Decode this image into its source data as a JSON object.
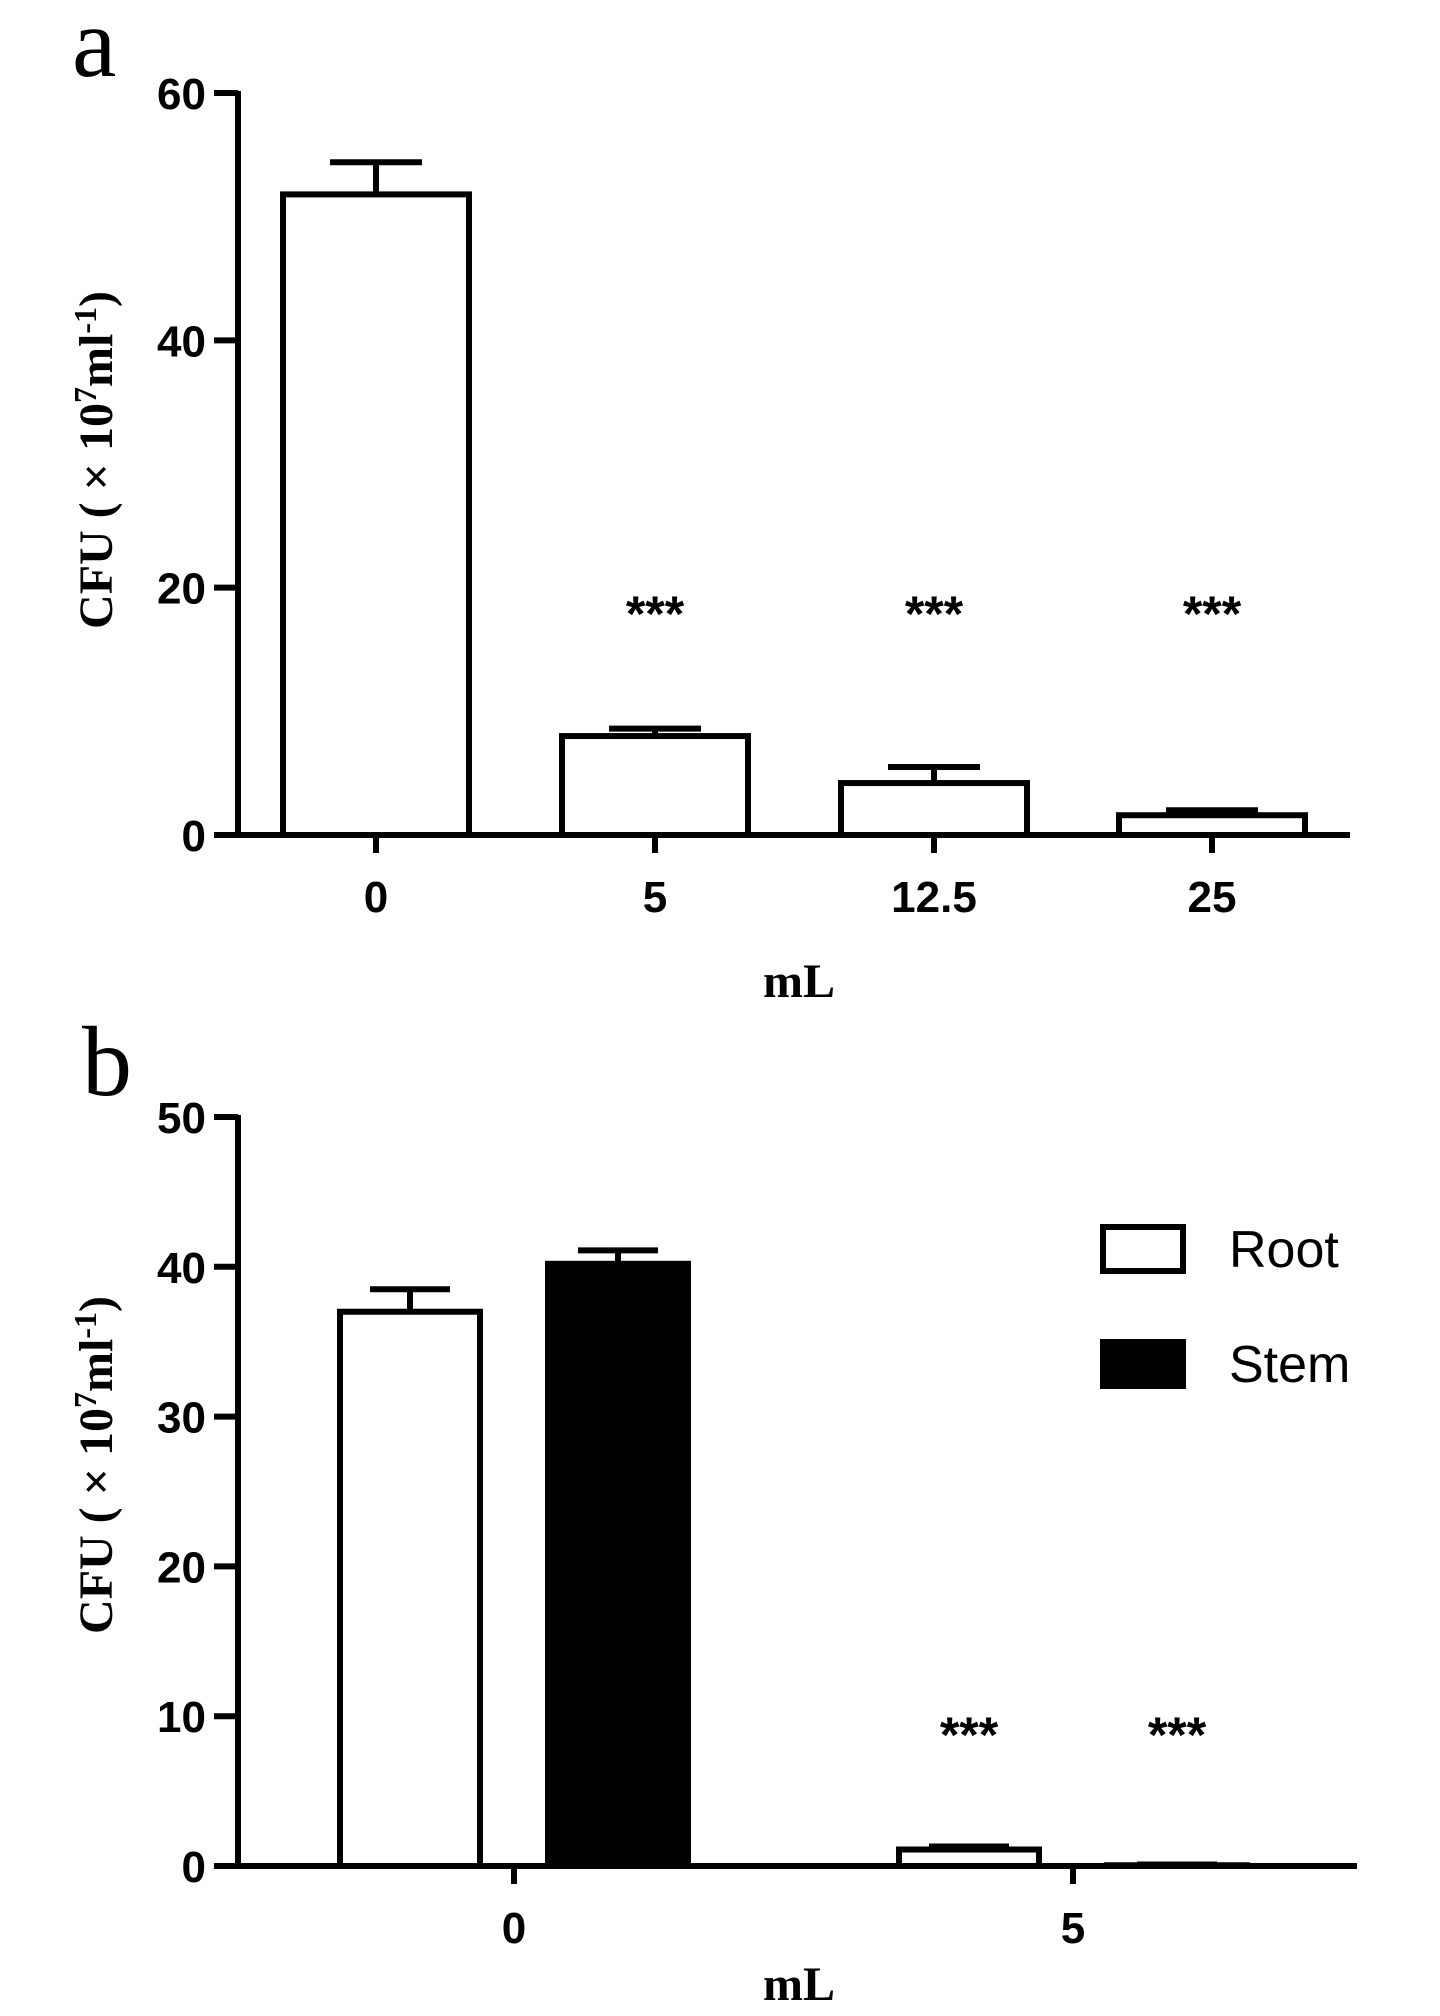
{
  "chart_data": [
    {
      "panel": "a",
      "type": "bar",
      "categories": [
        "0",
        "5",
        "12.5",
        "25"
      ],
      "series": [
        {
          "values": [
            51.8,
            8.0,
            4.2,
            1.6
          ],
          "errors": [
            2.6,
            0.6,
            1.3,
            0.4
          ],
          "fill": "#ffffff"
        }
      ],
      "significance": [
        "",
        "***",
        "***",
        "***"
      ],
      "xlabel": "mL",
      "ylabel": {
        "main": "CFU ( × 10",
        "sup1": "7",
        "mid": "ml",
        "sup2": "-1",
        "end": ")"
      },
      "ylim": [
        0,
        60
      ],
      "yticks": [
        "0",
        "20",
        "40",
        "60"
      ],
      "grid": false,
      "legend": null
    },
    {
      "panel": "b",
      "type": "bar",
      "categories": [
        "0",
        "5"
      ],
      "series": [
        {
          "name": "Root",
          "values": [
            37.0,
            1.1
          ],
          "errors": [
            1.5,
            0.2
          ],
          "fill": "#ffffff"
        },
        {
          "name": "Stem",
          "values": [
            40.2,
            0.05
          ],
          "errors": [
            0.9,
            0.05
          ],
          "fill": "#000000"
        }
      ],
      "significance": [
        [
          "",
          ""
        ],
        [
          "***",
          "***"
        ]
      ],
      "xlabel": "mL",
      "ylabel": {
        "main": "CFU ( × 10",
        "sup1": "7",
        "mid": "ml",
        "sup2": "-1",
        "end": ")"
      },
      "ylim": [
        0,
        50
      ],
      "yticks": [
        "0",
        "10",
        "20",
        "30",
        "40",
        "50"
      ],
      "grid": false,
      "legend": "top-right"
    }
  ],
  "colors": {
    "axis": "#000000",
    "open_bar": "#ffffff",
    "filled_bar": "#000000"
  }
}
